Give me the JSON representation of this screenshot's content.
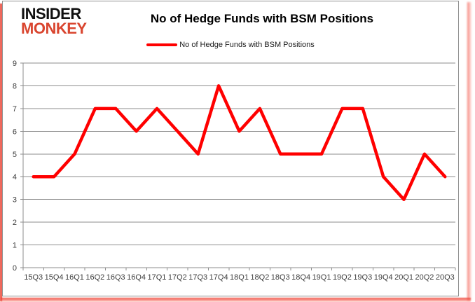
{
  "logo": {
    "line1": "INSIDER",
    "line2": "MONKEY",
    "color1": "#111111",
    "color2": "#d9452f"
  },
  "header": {
    "title": "No of Hedge Funds with BSM Positions"
  },
  "legend": {
    "label": "No of Hedge Funds with BSM Positions",
    "swatch_color": "#ff0000"
  },
  "chart_data": {
    "type": "line",
    "title": "No of Hedge Funds with BSM Positions",
    "categories": [
      "15Q3",
      "15Q4",
      "16Q1",
      "16Q2",
      "16Q3",
      "16Q4",
      "17Q1",
      "17Q2",
      "17Q3",
      "17Q4",
      "18Q1",
      "18Q2",
      "18Q3",
      "18Q4",
      "19Q1",
      "19Q2",
      "19Q3",
      "19Q4",
      "20Q1",
      "20Q2",
      "20Q3"
    ],
    "series": [
      {
        "name": "No of Hedge Funds with BSM Positions",
        "color": "#ff0000",
        "values": [
          4,
          4,
          5,
          7,
          7,
          6,
          7,
          6,
          5,
          8,
          6,
          7,
          5,
          5,
          5,
          7,
          7,
          4,
          3,
          5,
          4
        ]
      }
    ],
    "xlabel": "",
    "ylabel": "",
    "ylim": [
      0,
      9
    ],
    "yticks": [
      0,
      1,
      2,
      3,
      4,
      5,
      6,
      7,
      8,
      9
    ],
    "grid": true,
    "legend_position": "top",
    "gridline_color": "#8e8e8e",
    "axis_text_color": "#3d3d3d",
    "line_width": 4.5
  }
}
